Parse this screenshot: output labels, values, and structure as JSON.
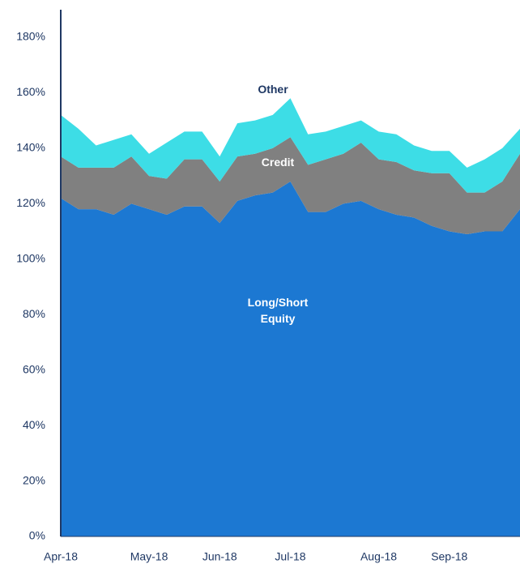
{
  "chart_data": {
    "type": "stacked-area",
    "categories": [
      "Apr-18",
      null,
      null,
      null,
      null,
      "May-18",
      null,
      null,
      null,
      "Jun-18",
      null,
      null,
      null,
      "Jul-18",
      null,
      null,
      null,
      null,
      "Aug-18",
      null,
      null,
      null,
      "Sep-18",
      null,
      null,
      null,
      null
    ],
    "series": [
      {
        "name": "Long/Short Equity",
        "color": "#1c78d2",
        "label_color": "#ffffff",
        "values": [
          122,
          118,
          118,
          116,
          120,
          118,
          116,
          119,
          119,
          113,
          121,
          123,
          124,
          128,
          117,
          117,
          120,
          121,
          118,
          116,
          115,
          112,
          110,
          109,
          110,
          110,
          118
        ]
      },
      {
        "name": "Credit",
        "color": "#808080",
        "label_color": "#ffffff",
        "values": [
          15,
          15,
          15,
          17,
          17,
          12,
          13,
          17,
          17,
          15,
          16,
          15,
          16,
          16,
          17,
          19,
          18,
          21,
          18,
          19,
          17,
          19,
          21,
          15,
          14,
          18,
          20
        ]
      },
      {
        "name": "Other",
        "color": "#3ddde6",
        "label_color": "#1f3864",
        "values": [
          15,
          14,
          8,
          10,
          8,
          8,
          13,
          10,
          10,
          9,
          12,
          12,
          12,
          14,
          11,
          10,
          10,
          8,
          10,
          10,
          9,
          8,
          8,
          9,
          12,
          12,
          9
        ]
      }
    ],
    "ylim": [
      0,
      180
    ],
    "yticks": [
      {
        "value": 0,
        "label": "0%"
      },
      {
        "value": 20,
        "label": "20%"
      },
      {
        "value": 40,
        "label": "40%"
      },
      {
        "value": 60,
        "label": "60%"
      },
      {
        "value": 80,
        "label": "80%"
      },
      {
        "value": 100,
        "label": "100%"
      },
      {
        "value": 120,
        "label": "120%"
      },
      {
        "value": 140,
        "label": "140%"
      },
      {
        "value": 160,
        "label": "160%"
      },
      {
        "value": 180,
        "label": "180%"
      }
    ],
    "grid": false
  }
}
